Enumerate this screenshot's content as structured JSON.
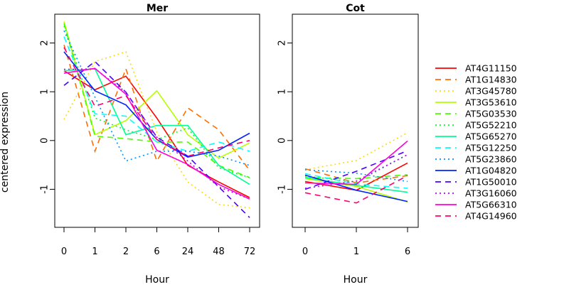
{
  "chart_data": [
    {
      "type": "line",
      "title": "Mer",
      "xlabel": "Hour",
      "ylabel": "centered expression",
      "categories": [
        "0",
        "1",
        "2",
        "6",
        "24",
        "48",
        "72"
      ],
      "ylim": [
        -1.78,
        2.59
      ],
      "yticks": [
        -1,
        0,
        1,
        2
      ],
      "series": [
        {
          "name": "AT4G11150",
          "values": [
            1.43,
            1.04,
            1.32,
            0.46,
            -0.51,
            -0.85,
            -1.17
          ]
        },
        {
          "name": "AT1G14830",
          "values": [
            1.96,
            -0.22,
            1.47,
            -0.42,
            0.67,
            0.22,
            -0.61
          ]
        },
        {
          "name": "AT3G45780",
          "values": [
            0.43,
            1.62,
            1.82,
            0.17,
            -0.85,
            -1.31,
            -1.38
          ]
        },
        {
          "name": "AT3G53610",
          "values": [
            2.44,
            0.12,
            0.41,
            1.02,
            0.12,
            -0.36,
            -0.05
          ]
        },
        {
          "name": "AT5G03530",
          "values": [
            2.4,
            0.09,
            0.04,
            -0.03,
            -0.03,
            -0.51,
            -0.76
          ]
        },
        {
          "name": "AT5G52210",
          "values": [
            2.35,
            0.46,
            0.22,
            0.02,
            0.26,
            -0.56,
            -0.76
          ]
        },
        {
          "name": "AT5G65270",
          "values": [
            1.43,
            1.47,
            0.12,
            0.31,
            0.31,
            -0.51,
            -0.9
          ]
        },
        {
          "name": "AT5G12250",
          "values": [
            2.13,
            0.55,
            0.5,
            -0.03,
            -0.22,
            -0.03,
            -0.22
          ]
        },
        {
          "name": "AT5G23860",
          "values": [
            2.25,
            0.89,
            -0.42,
            -0.22,
            -0.22,
            -0.32,
            -0.51
          ]
        },
        {
          "name": "AT1G04820",
          "values": [
            1.82,
            1.02,
            0.73,
            0.02,
            -0.34,
            -0.2,
            0.15
          ]
        },
        {
          "name": "AT1G50010",
          "values": [
            1.13,
            1.62,
            0.99,
            0.07,
            -0.32,
            -0.95,
            -1.58
          ]
        },
        {
          "name": "AT3G16060",
          "values": [
            1.46,
            1.47,
            0.99,
            0.07,
            -0.42,
            -0.95,
            -1.2
          ]
        },
        {
          "name": "AT5G66310",
          "values": [
            1.38,
            1.48,
            0.95,
            -0.2,
            -0.49,
            -0.9,
            -1.2
          ]
        },
        {
          "name": "AT4G14960",
          "values": [
            1.91,
            0.7,
            0.92,
            0.02,
            -0.32,
            -0.15,
            0.0
          ]
        }
      ]
    },
    {
      "type": "line",
      "title": "Cot",
      "xlabel": "Hour",
      "categories": [
        "0",
        "1",
        "6"
      ],
      "ylim": [
        -1.78,
        2.59
      ],
      "yticks": [
        -1,
        0,
        1,
        2
      ],
      "series": [
        {
          "name": "AT4G11150",
          "values": [
            -0.84,
            -1.02,
            -0.46
          ]
        },
        {
          "name": "AT1G14830",
          "values": [
            -0.58,
            -0.87,
            -0.72
          ]
        },
        {
          "name": "AT3G45780",
          "values": [
            -0.6,
            -0.41,
            0.16
          ]
        },
        {
          "name": "AT3G53610",
          "values": [
            -0.78,
            -0.94,
            -1.26
          ]
        },
        {
          "name": "AT5G03530",
          "values": [
            -0.76,
            -0.78,
            -0.7
          ]
        },
        {
          "name": "AT5G52210",
          "values": [
            -0.73,
            -0.85,
            -0.29
          ]
        },
        {
          "name": "AT5G65270",
          "values": [
            -0.76,
            -0.92,
            -1.06
          ]
        },
        {
          "name": "AT5G12250",
          "values": [
            -0.68,
            -0.89,
            -0.98
          ]
        },
        {
          "name": "AT5G23860",
          "values": [
            -0.6,
            -0.67,
            -0.84
          ]
        },
        {
          "name": "AT1G04820",
          "values": [
            -0.71,
            -1.02,
            -1.25
          ]
        },
        {
          "name": "AT1G50010",
          "values": [
            -1.0,
            -0.63,
            -0.21
          ]
        },
        {
          "name": "AT3G16060",
          "values": [
            -0.98,
            -0.83,
            -0.29
          ]
        },
        {
          "name": "AT5G66310",
          "values": [
            -0.87,
            -0.9,
            -0.01
          ]
        },
        {
          "name": "AT4G14960",
          "values": [
            -1.07,
            -1.28,
            -0.72
          ]
        }
      ]
    }
  ],
  "legend": {
    "placement": "right",
    "items": [
      {
        "label": "AT4G11150",
        "color": "#FF0000",
        "dash": "solid"
      },
      {
        "label": "AT1G14830",
        "color": "#FF6E00",
        "dash": "dashed"
      },
      {
        "label": "AT3G45780",
        "color": "#FFDB00",
        "dash": "dotted"
      },
      {
        "label": "AT3G53610",
        "color": "#B6FF00",
        "dash": "solid"
      },
      {
        "label": "AT5G03530",
        "color": "#49FF00",
        "dash": "dashed"
      },
      {
        "label": "AT5G52210",
        "color": "#00FF24",
        "dash": "dotted"
      },
      {
        "label": "AT5G65270",
        "color": "#00FF92",
        "dash": "solid"
      },
      {
        "label": "AT5G12250",
        "color": "#00FFFF",
        "dash": "dashed"
      },
      {
        "label": "AT5G23860",
        "color": "#0092FF",
        "dash": "dotted"
      },
      {
        "label": "AT1G04820",
        "color": "#0024FF",
        "dash": "solid"
      },
      {
        "label": "AT1G50010",
        "color": "#4900FF",
        "dash": "dashed"
      },
      {
        "label": "AT3G16060",
        "color": "#B600FF",
        "dash": "dotted"
      },
      {
        "label": "AT5G66310",
        "color": "#FF00DB",
        "dash": "solid"
      },
      {
        "label": "AT4G14960",
        "color": "#FF006D",
        "dash": "dashed"
      }
    ]
  }
}
